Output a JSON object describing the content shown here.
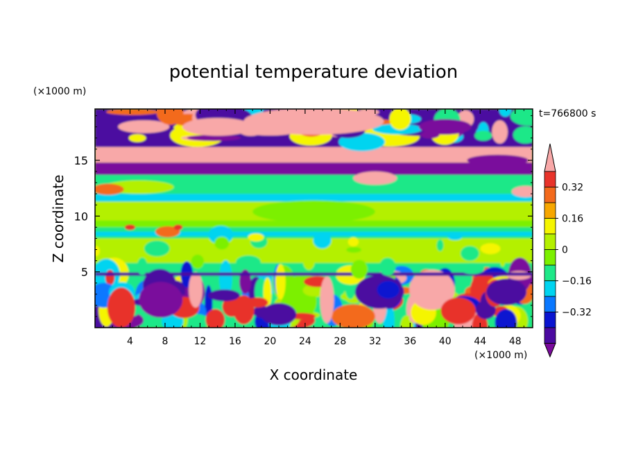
{
  "chart_data": {
    "type": "heatmap",
    "title": "potential temperature deviation",
    "time_label": "t=766800 s",
    "xlabel": "X coordinate",
    "ylabel": "Z coordinate",
    "x_unit": "(×1000 m)",
    "y_unit": "(×1000 m)",
    "x_range": [
      0,
      50
    ],
    "y_range": [
      0,
      19.6
    ],
    "x_ticks": [
      4,
      8,
      12,
      16,
      20,
      24,
      28,
      32,
      36,
      40,
      44,
      48
    ],
    "y_ticks": [
      5,
      10,
      15
    ],
    "colorbar": {
      "levels": [
        -0.48,
        -0.4,
        -0.32,
        -0.24,
        -0.16,
        -0.08,
        0,
        0.08,
        0.16,
        0.24,
        0.32,
        0.4,
        0.48
      ],
      "tick_labels": [
        "0.32",
        "0.16",
        "0",
        "−0.16",
        "−0.32"
      ],
      "tick_values": [
        0.32,
        0.16,
        0,
        -0.16,
        -0.32
      ],
      "colors": [
        "#f8a8a8",
        "#e8332a",
        "#f36a1c",
        "#f7a700",
        "#f5f500",
        "#b4f000",
        "#7cf000",
        "#1ee888",
        "#00d4f0",
        "#0a78ff",
        "#0a14d0",
        "#4b0aa0",
        "#7a0a9c"
      ],
      "extend": "both"
    },
    "field_summary": [
      {
        "z_range": [
          16,
          19.6
        ],
        "pattern": "mixed strong positive (pink) and strong negative (purple) anomalies"
      },
      {
        "z_range": [
          13.7,
          16
        ],
        "pattern": "pink band along top, purple band below"
      },
      {
        "z_range": [
          5,
          13.7
        ],
        "pattern": "weak anomalies near zero (green bands), light-blue layers near z≈11.6 and z≈8.4"
      },
      {
        "z_range": [
          0,
          5
        ],
        "pattern": "convective cells, alternating red/yellow and blue/purple columns; large pink cell near x≈38"
      }
    ]
  }
}
